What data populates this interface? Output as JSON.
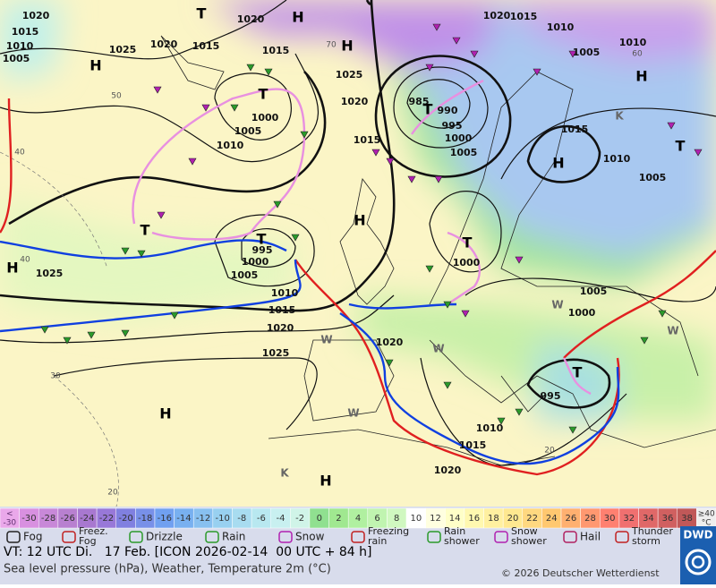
{
  "map": {
    "pressure_labels": [
      1020,
      1015,
      1010,
      1005,
      1025,
      1020,
      1015,
      1020,
      1015,
      1025,
      1020,
      1015,
      985,
      990,
      995,
      1000,
      1005,
      1020,
      1015,
      1010,
      1005,
      1010,
      1015,
      1010,
      1005,
      1000,
      1005,
      1010,
      995,
      1000,
      1005,
      1010,
      1015,
      1020,
      1025,
      1025,
      1000,
      1005,
      1000,
      1020,
      995,
      1010,
      1015,
      1020
    ],
    "centers": [
      "H",
      "T",
      "H",
      "H",
      "T",
      "T",
      "H",
      "H",
      "T",
      "K",
      "T",
      "T",
      "H",
      "T",
      "H",
      "H",
      "K",
      "H",
      "T",
      "W",
      "W",
      "W",
      "W",
      "W"
    ],
    "temperature_isoline_labels": [
      40,
      40,
      50,
      30,
      20,
      20,
      60,
      70
    ]
  },
  "temperature_scale": {
    "low_end": [
      "<",
      "-30"
    ],
    "values": [
      -30,
      -28,
      -26,
      -24,
      -22,
      -20,
      -18,
      -16,
      -14,
      -12,
      -10,
      -8,
      -6,
      -4,
      -2,
      0,
      2,
      4,
      6,
      8,
      10,
      12,
      14,
      16,
      18,
      20,
      22,
      24,
      26,
      28,
      30,
      32,
      34,
      36,
      38
    ],
    "high_end": [
      "≥40",
      "°C"
    ],
    "colors": [
      "#eaa8ea",
      "#d890e0",
      "#c888d8",
      "#b880d0",
      "#a878d0",
      "#9878d8",
      "#8080e0",
      "#7890e8",
      "#70a0f0",
      "#78b0f0",
      "#88c0f0",
      "#98d0f0",
      "#a8dcf0",
      "#b8e8f0",
      "#c8f0f0",
      "#d0f4e8",
      "#90e090",
      "#a0e890",
      "#b0f0a0",
      "#c0f4b0",
      "#d0f8c0",
      "#ffffff",
      "#ffffe0",
      "#ffffc8",
      "#fff8b0",
      "#fff0a0",
      "#ffe890",
      "#ffd880",
      "#ffc870",
      "#ffb070",
      "#ff9870",
      "#ff8070",
      "#f07070",
      "#e06868",
      "#d06060",
      "#c05858",
      "#eeeeee"
    ]
  },
  "weather_legend": [
    [
      "Fog"
    ],
    [
      "Freez.",
      "Fog"
    ],
    [
      "Drizzle"
    ],
    [
      "Rain"
    ],
    [
      "Snow"
    ],
    [
      "Freezing",
      "rain"
    ],
    [
      "Rain",
      "shower"
    ],
    [
      "Snow",
      "shower"
    ],
    [
      "Hail"
    ],
    [
      "Thunder",
      "storm"
    ]
  ],
  "footer": {
    "valid_time": "VT: 12 UTC Di.   17 Feb. [ICON 2026-02-14  00 UTC + 84 h]",
    "description": "Sea level pressure (hPa), Weather, Temperature 2m (°C)",
    "copyright": "© 2026 Deutscher Wetterdienst",
    "logo": "DWD"
  }
}
